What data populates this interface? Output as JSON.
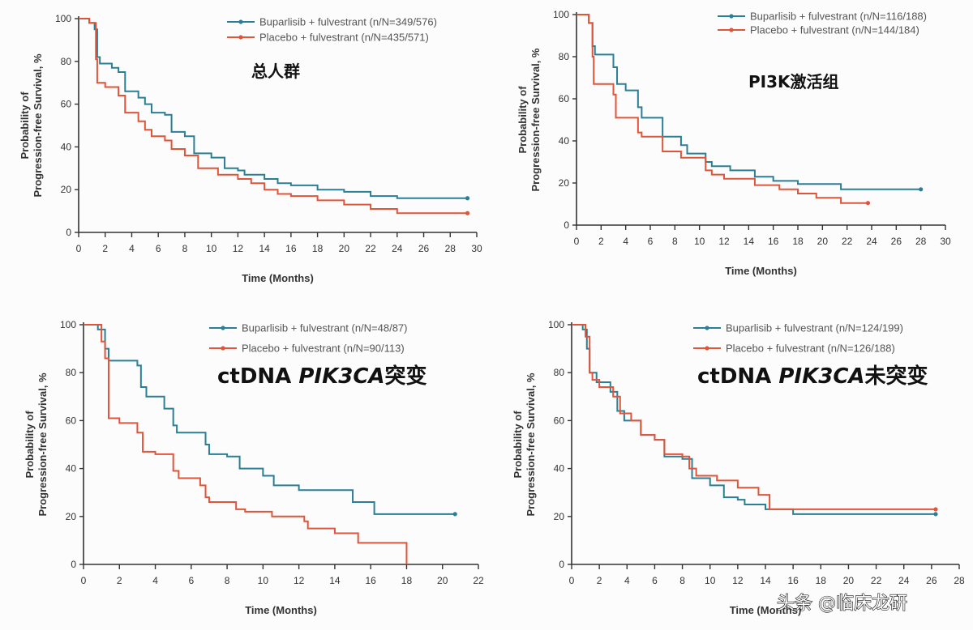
{
  "colors": {
    "buparlisib": "#2a7f95",
    "placebo": "#e0553a",
    "axis": "#333333"
  },
  "watermark": "头条 @临床龙研",
  "chart_data": [
    {
      "type": "line",
      "title_parts": [
        {
          "text": "总人群",
          "italic": false
        }
      ],
      "xlabel": "Time (Months)",
      "ylabel": [
        "Probability of",
        "Progression-free Survival, %"
      ],
      "xlim": [
        0,
        30
      ],
      "xticks": [
        0,
        2,
        4,
        6,
        8,
        10,
        12,
        14,
        16,
        18,
        20,
        22,
        24,
        26,
        28,
        30
      ],
      "ylim": [
        0,
        100
      ],
      "yticks": [
        0,
        20,
        40,
        60,
        80,
        100
      ],
      "legend_position": "top-right",
      "series": [
        {
          "name": "Buparlisib + fulvestrant (n/N=349/576)",
          "key": "buparlisib",
          "points": [
            [
              0,
              100
            ],
            [
              0.8,
              98
            ],
            [
              1.2,
              95
            ],
            [
              1.4,
              82
            ],
            [
              1.6,
              79
            ],
            [
              2.5,
              77
            ],
            [
              3,
              75
            ],
            [
              3.5,
              66
            ],
            [
              4.5,
              63
            ],
            [
              5,
              60
            ],
            [
              5.5,
              56
            ],
            [
              6.5,
              55
            ],
            [
              7,
              47
            ],
            [
              8,
              45
            ],
            [
              8.7,
              37
            ],
            [
              10,
              35
            ],
            [
              11,
              30
            ],
            [
              12,
              29
            ],
            [
              12.5,
              27
            ],
            [
              14,
              25
            ],
            [
              15,
              23
            ],
            [
              16,
              22
            ],
            [
              18,
              20
            ],
            [
              20,
              19
            ],
            [
              22,
              17
            ],
            [
              24,
              16
            ],
            [
              29.3,
              16
            ]
          ]
        },
        {
          "name": "Placebo + fulvestrant (n/N=435/571)",
          "key": "placebo",
          "points": [
            [
              0,
              100
            ],
            [
              0.8,
              98
            ],
            [
              1.3,
              81
            ],
            [
              1.4,
              70
            ],
            [
              2,
              68
            ],
            [
              3,
              64
            ],
            [
              3.5,
              56
            ],
            [
              4.5,
              52
            ],
            [
              5,
              48
            ],
            [
              5.5,
              45
            ],
            [
              6.5,
              43
            ],
            [
              7,
              39
            ],
            [
              8,
              36
            ],
            [
              9,
              30
            ],
            [
              10.5,
              27
            ],
            [
              12,
              25
            ],
            [
              13,
              23
            ],
            [
              14,
              20
            ],
            [
              15,
              18
            ],
            [
              16,
              17
            ],
            [
              18,
              15
            ],
            [
              20,
              13
            ],
            [
              22,
              11
            ],
            [
              24,
              9
            ],
            [
              29.3,
              9
            ]
          ]
        }
      ]
    },
    {
      "type": "line",
      "title_parts": [
        {
          "text": "PI3K激活组",
          "italic": false
        }
      ],
      "xlabel": "Time (Months)",
      "ylabel": [
        "Probability of",
        "Progression-free Survival, %"
      ],
      "xlim": [
        0,
        30
      ],
      "xticks": [
        0,
        2,
        4,
        6,
        8,
        10,
        12,
        14,
        16,
        18,
        20,
        22,
        24,
        26,
        28,
        30
      ],
      "ylim": [
        0,
        100
      ],
      "yticks": [
        0,
        20,
        40,
        60,
        80,
        100
      ],
      "legend_position": "top-right",
      "series": [
        {
          "name": "Buparlisib + fulvestrant (n/N=116/188)",
          "key": "buparlisib",
          "points": [
            [
              0,
              100
            ],
            [
              1,
              96
            ],
            [
              1.3,
              85
            ],
            [
              1.5,
              81
            ],
            [
              3,
              75
            ],
            [
              3.3,
              67
            ],
            [
              4,
              64
            ],
            [
              5,
              56
            ],
            [
              5.3,
              51
            ],
            [
              7,
              42
            ],
            [
              8.5,
              38
            ],
            [
              9,
              34
            ],
            [
              10.5,
              30
            ],
            [
              11,
              28
            ],
            [
              12.5,
              26
            ],
            [
              14.5,
              23
            ],
            [
              16,
              21
            ],
            [
              18,
              19.5
            ],
            [
              21.5,
              17
            ],
            [
              28,
              17
            ]
          ]
        },
        {
          "name": "Placebo + fulvestrant (n/N=144/184)",
          "key": "placebo",
          "points": [
            [
              0,
              100
            ],
            [
              1,
              96
            ],
            [
              1.3,
              80
            ],
            [
              1.4,
              67
            ],
            [
              3,
              62
            ],
            [
              3.2,
              51
            ],
            [
              5,
              44
            ],
            [
              5.3,
              42
            ],
            [
              7,
              35
            ],
            [
              8.5,
              32
            ],
            [
              10.5,
              26
            ],
            [
              11,
              24
            ],
            [
              12,
              22
            ],
            [
              14.5,
              19
            ],
            [
              16.5,
              17
            ],
            [
              18,
              15
            ],
            [
              19.5,
              13
            ],
            [
              21.5,
              10.5
            ],
            [
              23.7,
              10.5
            ]
          ]
        }
      ]
    },
    {
      "type": "line",
      "title_parts": [
        {
          "text": "ctDNA ",
          "italic": false
        },
        {
          "text": "PIK3CA",
          "italic": true
        },
        {
          "text": "突变",
          "italic": false
        }
      ],
      "xlabel": "Time (Months)",
      "ylabel": [
        "Probability of",
        "Progression-free Survival, %"
      ],
      "xlim": [
        0,
        22
      ],
      "xticks": [
        0,
        2,
        4,
        6,
        8,
        10,
        12,
        14,
        16,
        18,
        20,
        22
      ],
      "ylim": [
        0,
        100
      ],
      "yticks": [
        0,
        20,
        40,
        60,
        80,
        100
      ],
      "legend_position": "top-right",
      "series": [
        {
          "name": "Buparlisib + fulvestrant (n/N=48/87)",
          "key": "buparlisib",
          "points": [
            [
              0,
              100
            ],
            [
              0.8,
              98
            ],
            [
              1.2,
              90
            ],
            [
              1.4,
              85
            ],
            [
              3,
              83
            ],
            [
              3.2,
              74
            ],
            [
              3.5,
              70
            ],
            [
              4.5,
              65
            ],
            [
              5,
              58
            ],
            [
              5.2,
              55
            ],
            [
              6.8,
              50
            ],
            [
              7,
              46
            ],
            [
              8,
              45
            ],
            [
              8.7,
              40
            ],
            [
              10,
              37
            ],
            [
              10.6,
              33
            ],
            [
              12,
              31
            ],
            [
              15,
              26
            ],
            [
              16.2,
              21
            ],
            [
              20.7,
              21
            ]
          ]
        },
        {
          "name": "Placebo + fulvestrant (n/N=90/113)",
          "key": "placebo",
          "points": [
            [
              0,
              100
            ],
            [
              1,
              93
            ],
            [
              1.2,
              86
            ],
            [
              1.4,
              61
            ],
            [
              2,
              59
            ],
            [
              3,
              55
            ],
            [
              3.3,
              47
            ],
            [
              4,
              46
            ],
            [
              5,
              39
            ],
            [
              5.3,
              36
            ],
            [
              6.5,
              33
            ],
            [
              6.8,
              28
            ],
            [
              7,
              26
            ],
            [
              8.5,
              23
            ],
            [
              9,
              22
            ],
            [
              10.5,
              20
            ],
            [
              12.3,
              18
            ],
            [
              12.5,
              15
            ],
            [
              14,
              13
            ],
            [
              15.3,
              9
            ],
            [
              18,
              9
            ],
            [
              18,
              0
            ]
          ]
        }
      ]
    },
    {
      "type": "line",
      "title_parts": [
        {
          "text": "ctDNA ",
          "italic": false
        },
        {
          "text": "PIK3CA",
          "italic": true
        },
        {
          "text": "未突变",
          "italic": false
        }
      ],
      "xlabel": "Time (Months)",
      "ylabel": [
        "Probability of",
        "Progression-free Survival, %"
      ],
      "xlim": [
        0,
        28
      ],
      "xticks": [
        0,
        2,
        4,
        6,
        8,
        10,
        12,
        14,
        16,
        18,
        20,
        22,
        24,
        26,
        28
      ],
      "ylim": [
        0,
        100
      ],
      "yticks": [
        0,
        20,
        40,
        60,
        80,
        100
      ],
      "legend_position": "top-right",
      "series": [
        {
          "name": "Buparlisib + fulvestrant (n/N=124/199)",
          "key": "buparlisib",
          "points": [
            [
              0,
              100
            ],
            [
              0.8,
              98
            ],
            [
              1.1,
              90
            ],
            [
              1.3,
              80
            ],
            [
              1.8,
              76
            ],
            [
              2.8,
              72
            ],
            [
              3.3,
              64
            ],
            [
              3.8,
              60
            ],
            [
              5,
              54
            ],
            [
              6,
              52
            ],
            [
              6.7,
              45
            ],
            [
              8,
              44
            ],
            [
              8.7,
              36
            ],
            [
              10,
              33
            ],
            [
              11,
              28
            ],
            [
              12,
              27
            ],
            [
              12.5,
              25
            ],
            [
              14,
              23
            ],
            [
              16,
              21
            ],
            [
              26.3,
              21
            ]
          ]
        },
        {
          "name": "Placebo + fulvestrant (n/N=126/188)",
          "key": "placebo",
          "points": [
            [
              0,
              100
            ],
            [
              1,
              95
            ],
            [
              1.3,
              80
            ],
            [
              1.5,
              77
            ],
            [
              2,
              74
            ],
            [
              3,
              70
            ],
            [
              3.5,
              63
            ],
            [
              4.3,
              60
            ],
            [
              5,
              54
            ],
            [
              6,
              52
            ],
            [
              6.7,
              46
            ],
            [
              8,
              45
            ],
            [
              8.5,
              40
            ],
            [
              9,
              37
            ],
            [
              10.5,
              35
            ],
            [
              12,
              32
            ],
            [
              13.5,
              29
            ],
            [
              14.3,
              23
            ],
            [
              16,
              23
            ],
            [
              26.3,
              23
            ]
          ]
        }
      ]
    }
  ]
}
